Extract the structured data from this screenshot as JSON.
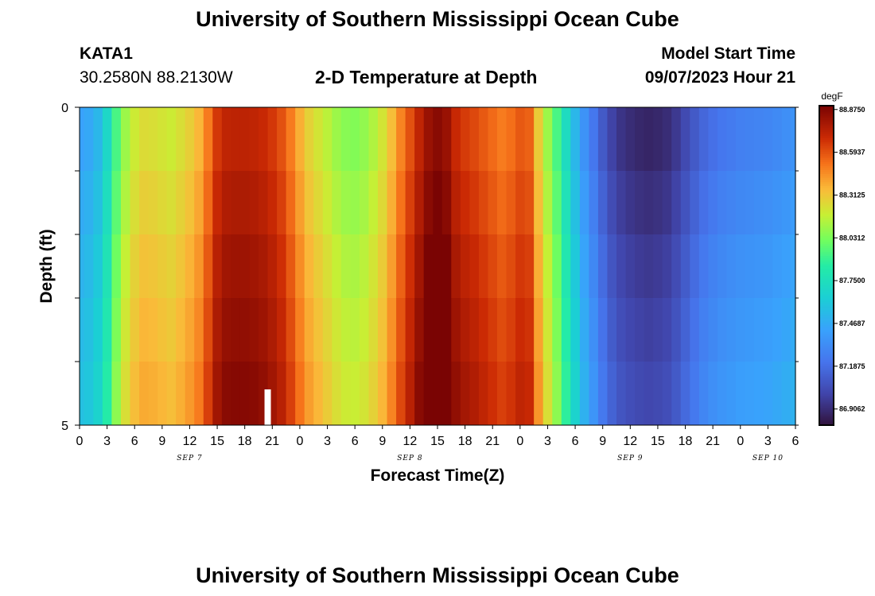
{
  "header": {
    "title": "University of Southern Mississippi Ocean Cube",
    "station_id": "KATA1",
    "station_coords": "30.2580N  88.2130W",
    "plot_subtitle": "2-D Temperature at Depth",
    "model_start_label": "Model Start Time",
    "model_start_value": "09/07/2023 Hour 21"
  },
  "footer": {
    "title": "University of Southern Mississippi Ocean Cube"
  },
  "chart_data": {
    "type": "heatmap",
    "title": "2-D Temperature at Depth",
    "xlabel": "Forecast Time(Z)",
    "ylabel": "Depth (ft)",
    "x_start_hour": 0,
    "x_end_hour": 78,
    "x_tick_step_hours": 3,
    "x_tick_labels": [
      "0",
      "3",
      "6",
      "9",
      "12",
      "15",
      "18",
      "21",
      "0",
      "3",
      "6",
      "9",
      "12",
      "15",
      "18",
      "21",
      "0",
      "3",
      "6",
      "9",
      "12",
      "15",
      "18",
      "21",
      "0",
      "3",
      "6"
    ],
    "date_labels": [
      {
        "text": "SEP 7",
        "hour": 12
      },
      {
        "text": "SEP 8",
        "hour": 36
      },
      {
        "text": "SEP 9",
        "hour": 60
      },
      {
        "text": "SEP 10",
        "hour": 75
      }
    ],
    "y_tick_labels": [
      "0",
      "5"
    ],
    "ylim": [
      0,
      5
    ],
    "depth_levels": 5,
    "colorbar": {
      "unit": "degF",
      "min": 86.8,
      "max": 88.9,
      "labels": [
        "88.8750",
        "88.5937",
        "88.3125",
        "88.0312",
        "87.7500",
        "87.4687",
        "87.1875",
        "86.9062"
      ]
    },
    "missing_hour": 20.5,
    "grid": false,
    "legend": "colorbar-right",
    "temperature_by_hour": [
      {
        "h": 0,
        "v": 87.45
      },
      {
        "h": 1,
        "v": 87.48
      },
      {
        "h": 2,
        "v": 87.55
      },
      {
        "h": 3,
        "v": 87.72
      },
      {
        "h": 4,
        "v": 87.95
      },
      {
        "h": 5,
        "v": 88.12
      },
      {
        "h": 6,
        "v": 88.22
      },
      {
        "h": 7,
        "v": 88.27
      },
      {
        "h": 8,
        "v": 88.26
      },
      {
        "h": 9,
        "v": 88.24
      },
      {
        "h": 10,
        "v": 88.22
      },
      {
        "h": 11,
        "v": 88.26
      },
      {
        "h": 12,
        "v": 88.31
      },
      {
        "h": 13,
        "v": 88.38
      },
      {
        "h": 14,
        "v": 88.52
      },
      {
        "h": 15,
        "v": 88.68
      },
      {
        "h": 16,
        "v": 88.74
      },
      {
        "h": 17,
        "v": 88.75
      },
      {
        "h": 18,
        "v": 88.75
      },
      {
        "h": 19,
        "v": 88.74
      },
      {
        "h": 20,
        "v": 88.72
      },
      {
        "h": 21,
        "v": 88.68
      },
      {
        "h": 22,
        "v": 88.62
      },
      {
        "h": 23,
        "v": 88.52
      },
      {
        "h": 24,
        "v": 88.4
      },
      {
        "h": 25,
        "v": 88.3
      },
      {
        "h": 26,
        "v": 88.24
      },
      {
        "h": 27,
        "v": 88.18
      },
      {
        "h": 28,
        "v": 88.12
      },
      {
        "h": 29,
        "v": 88.08
      },
      {
        "h": 30,
        "v": 88.07
      },
      {
        "h": 31,
        "v": 88.1
      },
      {
        "h": 32,
        "v": 88.16
      },
      {
        "h": 33,
        "v": 88.24
      },
      {
        "h": 34,
        "v": 88.36
      },
      {
        "h": 35,
        "v": 88.5
      },
      {
        "h": 36,
        "v": 88.62
      },
      {
        "h": 37,
        "v": 88.74
      },
      {
        "h": 38,
        "v": 88.84
      },
      {
        "h": 39,
        "v": 88.88
      },
      {
        "h": 40,
        "v": 88.84
      },
      {
        "h": 41,
        "v": 88.72
      },
      {
        "h": 42,
        "v": 88.67
      },
      {
        "h": 43,
        "v": 88.64
      },
      {
        "h": 44,
        "v": 88.6
      },
      {
        "h": 45,
        "v": 88.56
      },
      {
        "h": 46,
        "v": 88.52
      },
      {
        "h": 47,
        "v": 88.55
      },
      {
        "h": 48,
        "v": 88.6
      },
      {
        "h": 49,
        "v": 88.58
      },
      {
        "h": 50,
        "v": 88.32
      },
      {
        "h": 51,
        "v": 88.12
      },
      {
        "h": 52,
        "v": 87.95
      },
      {
        "h": 53,
        "v": 87.75
      },
      {
        "h": 54,
        "v": 87.55
      },
      {
        "h": 55,
        "v": 87.38
      },
      {
        "h": 56,
        "v": 87.25
      },
      {
        "h": 57,
        "v": 87.12
      },
      {
        "h": 58,
        "v": 87.02
      },
      {
        "h": 59,
        "v": 86.96
      },
      {
        "h": 60,
        "v": 86.93
      },
      {
        "h": 61,
        "v": 86.91
      },
      {
        "h": 62,
        "v": 86.9
      },
      {
        "h": 63,
        "v": 86.91
      },
      {
        "h": 64,
        "v": 86.93
      },
      {
        "h": 65,
        "v": 86.98
      },
      {
        "h": 66,
        "v": 87.05
      },
      {
        "h": 67,
        "v": 87.12
      },
      {
        "h": 68,
        "v": 87.18
      },
      {
        "h": 69,
        "v": 87.22
      },
      {
        "h": 70,
        "v": 87.25
      },
      {
        "h": 71,
        "v": 87.27
      },
      {
        "h": 72,
        "v": 87.29
      },
      {
        "h": 73,
        "v": 87.3
      },
      {
        "h": 74,
        "v": 87.31
      },
      {
        "h": 75,
        "v": 87.32
      },
      {
        "h": 76,
        "v": 87.34
      },
      {
        "h": 77,
        "v": 87.36
      },
      {
        "h": 78,
        "v": 87.38
      }
    ],
    "depth_offsets": [
      {
        "level": 1,
        "depth_ft": 0.5,
        "offset_degF": -0.02
      },
      {
        "level": 2,
        "depth_ft": 1.5,
        "offset_degF": 0.02
      },
      {
        "level": 3,
        "depth_ft": 2.5,
        "offset_degF": 0.06
      },
      {
        "level": 4,
        "depth_ft": 3.5,
        "offset_degF": 0.09
      },
      {
        "level": 5,
        "depth_ft": 4.5,
        "offset_degF": 0.12
      }
    ]
  }
}
